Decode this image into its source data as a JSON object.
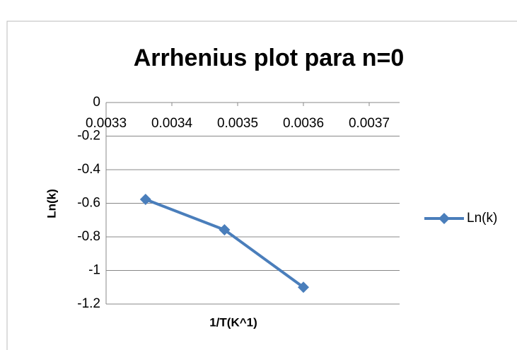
{
  "chart_data": {
    "type": "line",
    "title": "Arrhenius plot para n=0",
    "x_label": "1/T(K^1)",
    "y_label": "Ln(k)",
    "x": [
      0.00336,
      0.00348,
      0.0036
    ],
    "series": [
      {
        "name": "Ln(k)",
        "color": "#4a7ebb",
        "values": [
          -0.577,
          -0.758,
          -1.1
        ]
      }
    ],
    "xlim": [
      0.0033,
      0.0037
    ],
    "xticks": [
      0.0033,
      0.0034,
      0.0035,
      0.0036,
      0.0037
    ],
    "ylim": [
      -1.2,
      0
    ],
    "yticks": [
      0,
      -0.2,
      -0.4,
      -0.6,
      -0.8,
      -1,
      -1.2
    ],
    "grid": true,
    "legend": "right"
  }
}
